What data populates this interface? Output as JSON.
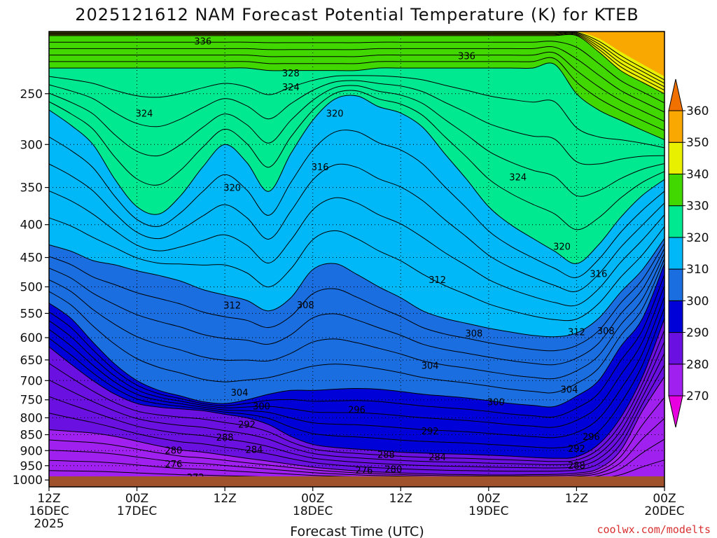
{
  "chart_data": {
    "type": "filled-contour",
    "title": "2025121612 NAM Forecast Potential Temperature (K) for KTEB",
    "xlabel": "Forecast Time (UTC)",
    "ylabel": "",
    "watermark": "coolwx.com/modelts",
    "x_forecast_hours": [
      0,
      12,
      24,
      36,
      48,
      60,
      72,
      84
    ],
    "x_ticks": [
      {
        "hour": 0,
        "line1": "12Z",
        "line2": "16DEC",
        "line3": "2025"
      },
      {
        "hour": 12,
        "line1": "00Z",
        "line2": "17DEC",
        "line3": ""
      },
      {
        "hour": 24,
        "line1": "12Z",
        "line2": "",
        "line3": ""
      },
      {
        "hour": 36,
        "line1": "00Z",
        "line2": "18DEC",
        "line3": ""
      },
      {
        "hour": 48,
        "line1": "12Z",
        "line2": "",
        "line3": ""
      },
      {
        "hour": 60,
        "line1": "00Z",
        "line2": "19DEC",
        "line3": ""
      },
      {
        "hour": 72,
        "line1": "12Z",
        "line2": "",
        "line3": ""
      },
      {
        "hour": 84,
        "line1": "00Z",
        "line2": "20DEC",
        "line3": ""
      }
    ],
    "y_pressure_range_hpa": [
      1025,
      200
    ],
    "y_ticks": [
      250,
      300,
      350,
      400,
      450,
      500,
      550,
      600,
      650,
      700,
      750,
      800,
      850,
      900,
      950,
      1000
    ],
    "y_tick_labels": [
      "250",
      "300",
      "350",
      "400",
      "450",
      "500",
      "550",
      "600",
      "650",
      "700",
      "750",
      "800",
      "850",
      "900",
      "950",
      "1000"
    ],
    "colorbar": {
      "levels": [
        270,
        280,
        290,
        300,
        310,
        320,
        330,
        340,
        350,
        360
      ],
      "labels": [
        "270",
        "280",
        "290",
        "300",
        "310",
        "320",
        "330",
        "340",
        "350",
        "360"
      ],
      "colors": [
        "#e800e0",
        "#a020f0",
        "#6a10e0",
        "#0000d8",
        "#1a6ee0",
        "#00b8f8",
        "#00e890",
        "#40d800",
        "#e8f000",
        "#f8a800",
        "#f07000"
      ]
    },
    "isotherm_profiles": [
      {
        "level": 270,
        "pressure": [
          1003,
          1003,
          1003,
          1003,
          1003,
          1003,
          1003,
          1003,
          1003,
          1003,
          1003,
          1003,
          1003,
          1003,
          1003,
          1003,
          1003,
          1003,
          1003,
          1003,
          1003,
          1003,
          1003,
          1003,
          1003,
          1003,
          1003,
          1003,
          1003
        ]
      },
      {
        "level": 280,
        "pressure": [
          835,
          840,
          845,
          855,
          870,
          885,
          898,
          905,
          915,
          925,
          935,
          945,
          955,
          962,
          968,
          972,
          975,
          978,
          980,
          981,
          982,
          982,
          981,
          980,
          976,
          960,
          900,
          780,
          690
        ]
      },
      {
        "level": 290,
        "pressure": [
          620,
          660,
          700,
          735,
          760,
          770,
          775,
          780,
          790,
          800,
          820,
          855,
          880,
          890,
          895,
          900,
          905,
          908,
          910,
          912,
          915,
          918,
          922,
          925,
          920,
          880,
          800,
          690,
          560
        ]
      },
      {
        "level": 300,
        "pressure": [
          530,
          560,
          610,
          660,
          700,
          725,
          740,
          755,
          760,
          750,
          735,
          725,
          725,
          722,
          720,
          722,
          728,
          735,
          740,
          745,
          752,
          760,
          765,
          768,
          740,
          700,
          620,
          560,
          460
        ]
      },
      {
        "level": 310,
        "pressure": [
          430,
          440,
          455,
          462,
          472,
          480,
          490,
          505,
          515,
          525,
          545,
          520,
          470,
          460,
          478,
          500,
          520,
          545,
          560,
          570,
          580,
          588,
          595,
          598,
          590,
          560,
          510,
          470,
          420
        ]
      },
      {
        "level": 320,
        "pressure": [
          265,
          280,
          300,
          340,
          375,
          385,
          360,
          325,
          300,
          320,
          355,
          310,
          275,
          255,
          252,
          262,
          268,
          282,
          310,
          340,
          375,
          400,
          420,
          440,
          460,
          430,
          390,
          360,
          340
        ]
      },
      {
        "level": 330,
        "pressure": [
          228,
          228,
          228,
          228,
          228,
          228,
          228,
          228,
          228,
          228,
          230,
          230,
          230,
          230,
          230,
          228,
          228,
          228,
          228,
          228,
          228,
          228,
          228,
          225,
          250,
          265,
          275,
          285,
          295
        ]
      },
      {
        "level": 340,
        "pressure": [
          203,
          203,
          203,
          203,
          203,
          203,
          203,
          203,
          203,
          203,
          203,
          203,
          203,
          203,
          203,
          203,
          203,
          203,
          203,
          203,
          203,
          203,
          203,
          203,
          203,
          215,
          230,
          240,
          250
        ]
      },
      {
        "level": 350,
        "pressure": [
          200,
          200,
          200,
          200,
          200,
          200,
          200,
          200,
          200,
          200,
          200,
          200,
          200,
          200,
          200,
          200,
          200,
          200,
          200,
          200,
          200,
          200,
          200,
          200,
          200,
          205,
          215,
          225,
          235
        ]
      }
    ],
    "profile_hours": [
      0,
      3,
      6,
      9,
      12,
      15,
      18,
      21,
      24,
      27,
      30,
      33,
      36,
      39,
      42,
      45,
      48,
      51,
      54,
      57,
      60,
      63,
      66,
      69,
      72,
      75,
      78,
      81,
      84
    ],
    "contour_labels": [
      {
        "text": "336",
        "hour": 21,
        "pressure": 207
      },
      {
        "text": "336",
        "hour": 57,
        "pressure": 218
      },
      {
        "text": "328",
        "hour": 33,
        "pressure": 232
      },
      {
        "text": "324",
        "hour": 33,
        "pressure": 244
      },
      {
        "text": "324",
        "hour": 13,
        "pressure": 268
      },
      {
        "text": "320",
        "hour": 39,
        "pressure": 268
      },
      {
        "text": "316",
        "hour": 37,
        "pressure": 325
      },
      {
        "text": "320",
        "hour": 25,
        "pressure": 350
      },
      {
        "text": "324",
        "hour": 64,
        "pressure": 337
      },
      {
        "text": "320",
        "hour": 70,
        "pressure": 432
      },
      {
        "text": "316",
        "hour": 75,
        "pressure": 477
      },
      {
        "text": "312",
        "hour": 53,
        "pressure": 487
      },
      {
        "text": "312",
        "hour": 25,
        "pressure": 534
      },
      {
        "text": "308",
        "hour": 35,
        "pressure": 533
      },
      {
        "text": "308",
        "hour": 58,
        "pressure": 590
      },
      {
        "text": "312",
        "hour": 72,
        "pressure": 587
      },
      {
        "text": "308",
        "hour": 76,
        "pressure": 585
      },
      {
        "text": "304",
        "hour": 52,
        "pressure": 663
      },
      {
        "text": "304",
        "hour": 26,
        "pressure": 730
      },
      {
        "text": "304",
        "hour": 71,
        "pressure": 722
      },
      {
        "text": "300",
        "hour": 29,
        "pressure": 767
      },
      {
        "text": "296",
        "hour": 42,
        "pressure": 776
      },
      {
        "text": "300",
        "hour": 61,
        "pressure": 755
      },
      {
        "text": "292",
        "hour": 27,
        "pressure": 818
      },
      {
        "text": "292",
        "hour": 52,
        "pressure": 838
      },
      {
        "text": "296",
        "hour": 74,
        "pressure": 855
      },
      {
        "text": "288",
        "hour": 24,
        "pressure": 857
      },
      {
        "text": "292",
        "hour": 72,
        "pressure": 893
      },
      {
        "text": "280",
        "hour": 17,
        "pressure": 898
      },
      {
        "text": "284",
        "hour": 28,
        "pressure": 896
      },
      {
        "text": "288",
        "hour": 46,
        "pressure": 912
      },
      {
        "text": "284",
        "hour": 53,
        "pressure": 920
      },
      {
        "text": "276",
        "hour": 17,
        "pressure": 943
      },
      {
        "text": "288",
        "hour": 72,
        "pressure": 948
      },
      {
        "text": "280",
        "hour": 47,
        "pressure": 961
      },
      {
        "text": "276",
        "hour": 43,
        "pressure": 965
      },
      {
        "text": "272",
        "hour": 20,
        "pressure": 990
      }
    ],
    "ground_color": "#a0522d"
  }
}
